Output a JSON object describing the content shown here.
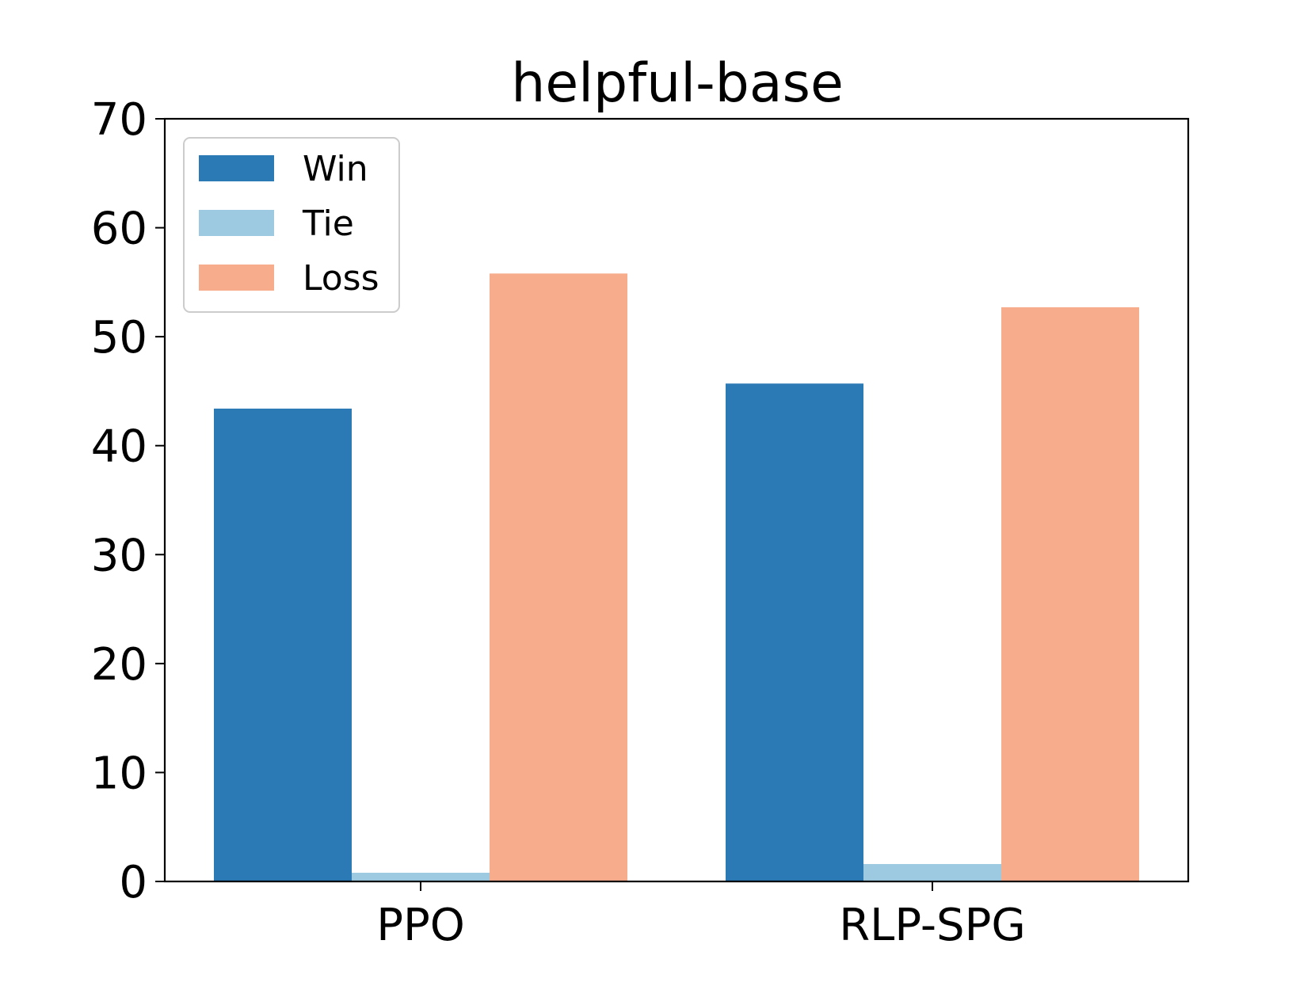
{
  "chart_data": {
    "type": "bar",
    "title": "helpful-base",
    "xlabel": "",
    "ylabel": "",
    "categories": [
      "PPO",
      "RLP-SPG"
    ],
    "series": [
      {
        "name": "Win",
        "color": "#2b79b5",
        "values": [
          43.4,
          45.7
        ]
      },
      {
        "name": "Tie",
        "color": "#9ecae1",
        "values": [
          0.8,
          1.6
        ]
      },
      {
        "name": "Loss",
        "color": "#f7ac8c",
        "values": [
          55.8,
          52.7
        ]
      }
    ],
    "ylim": [
      0,
      70
    ],
    "yticks": [
      "0",
      "10",
      "20",
      "30",
      "40",
      "50",
      "60",
      "70"
    ],
    "legend": "upper-left",
    "grid": false
  }
}
